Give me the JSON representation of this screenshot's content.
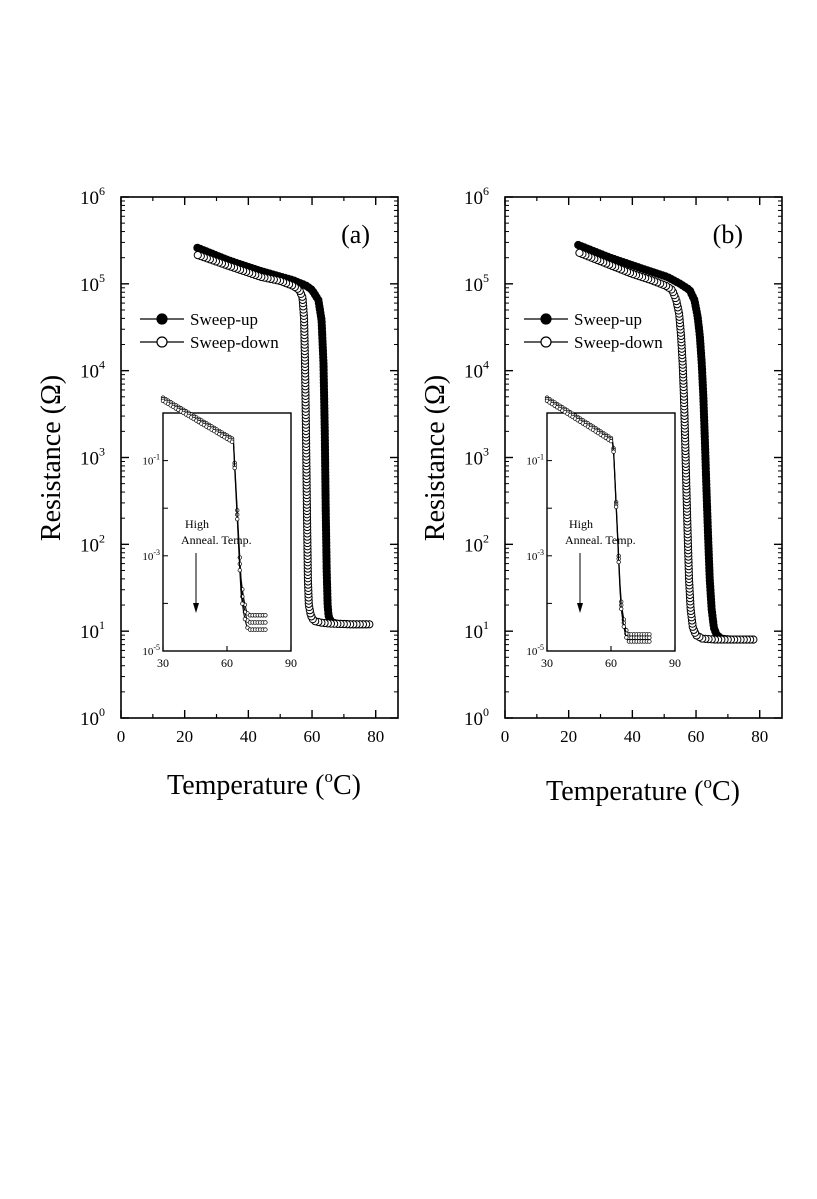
{
  "figure": {
    "panels": [
      "(a)",
      "(b)"
    ]
  },
  "chart_data": [
    {
      "type": "scatter",
      "panel_label": "(a)",
      "xlabel": "Temperature (oC)",
      "xlabel_main": "Temperature (",
      "xlabel_sup": "o",
      "xlabel_unit": "C)",
      "ylabel": "Resistance (Ω)",
      "ylabel_text": "Resistance (",
      "ylabel_symbol": "Ω",
      "ylabel_close": ")",
      "xlim": [
        0,
        87
      ],
      "ylim_log10": [
        0,
        6
      ],
      "x_ticks": [
        "0",
        "20",
        "40",
        "60",
        "80"
      ],
      "x_tick_values": [
        0,
        20,
        40,
        60,
        80
      ],
      "y_tick_base": "10",
      "y_tick_exponents": [
        "0",
        "1",
        "2",
        "3",
        "4",
        "5",
        "6"
      ],
      "y_tick_values": [
        0,
        1,
        2,
        3,
        4,
        5,
        6
      ],
      "legend_position": "upper-left",
      "series": [
        {
          "name": "Sweep-up",
          "marker": "filled-circle",
          "x": [
            24.0,
            34.0,
            44.0,
            54.0,
            58.0,
            60.0,
            62.0,
            63.0,
            63.6,
            64.0,
            64.3,
            64.6,
            64.9,
            65.2,
            65.5,
            65.9,
            66.5,
            68.0,
            72.0,
            78.0
          ],
          "y": [
            260000,
            185000,
            140000,
            110000,
            96000,
            85000,
            65000,
            38000,
            12000,
            2000,
            250,
            50,
            20,
            15,
            14,
            13,
            12.5,
            12.2,
            12.0,
            12.0
          ]
        },
        {
          "name": "Sweep-down",
          "marker": "open-circle",
          "x": [
            78.0,
            72.0,
            66.0,
            63.0,
            61.0,
            60.0,
            59.5,
            59.0,
            58.7,
            58.4,
            58.1,
            57.8,
            57.5,
            57.0,
            56.0,
            54.0,
            50.0,
            44.0,
            34.0,
            24.0
          ],
          "y": [
            12.0,
            12.0,
            12.2,
            12.5,
            13.0,
            14,
            16,
            20,
            40,
            250,
            2000,
            12000,
            40000,
            70000,
            85000,
            95000,
            108000,
            120000,
            160000,
            215000
          ]
        }
      ],
      "inset": {
        "xlim": [
          30,
          90
        ],
        "ylim_log10": [
          -5,
          0
        ],
        "x_ticks": [
          "30",
          "60",
          "90"
        ],
        "x_tick_values": [
          30,
          60,
          90
        ],
        "y_tick_base": "10",
        "y_tick_exponents": [
          "-1",
          "-3",
          "-5"
        ],
        "y_tick_values": [
          -1,
          -3,
          -5
        ],
        "annotation_line1": "High",
        "annotation_line2": "Anneal. Temp.",
        "transition_x": 65,
        "curves": [
          {
            "high": 0.28,
            "low_log10": -4.25
          },
          {
            "high": 0.26,
            "low_log10": -4.4
          },
          {
            "high": 0.24,
            "low_log10": -4.55
          }
        ]
      }
    },
    {
      "type": "scatter",
      "panel_label": "(b)",
      "xlabel": "Temperature (oC)",
      "xlabel_main": "Temperature (",
      "xlabel_sup": "o",
      "xlabel_unit": "C)",
      "ylabel": "Resistance (Ω)",
      "ylabel_text": "Resistance (",
      "ylabel_symbol": "Ω",
      "ylabel_close": ")",
      "xlim": [
        0,
        87
      ],
      "ylim_log10": [
        0,
        6
      ],
      "x_ticks": [
        "0",
        "20",
        "40",
        "60",
        "80"
      ],
      "x_tick_values": [
        0,
        20,
        40,
        60,
        80
      ],
      "y_tick_base": "10",
      "y_tick_exponents": [
        "0",
        "1",
        "2",
        "3",
        "4",
        "5",
        "6"
      ],
      "y_tick_values": [
        0,
        1,
        2,
        3,
        4,
        5,
        6
      ],
      "legend_position": "upper-left",
      "series": [
        {
          "name": "Sweep-up",
          "marker": "filled-circle",
          "x": [
            23.0,
            33.0,
            43.0,
            51.0,
            55.0,
            58.0,
            59.5,
            60.5,
            61.2,
            61.8,
            62.3,
            62.8,
            63.3,
            63.8,
            64.3,
            64.9,
            65.6,
            66.5,
            68.0,
            71.0,
            75.0,
            78.0
          ],
          "y": [
            280000,
            200000,
            150000,
            120000,
            100000,
            85000,
            65000,
            42000,
            25000,
            12000,
            5000,
            1500,
            400,
            120,
            40,
            18,
            11,
            9.0,
            8.2,
            8.0,
            8.0,
            8.0
          ],
          "transition_center": 63.3
        },
        {
          "name": "Sweep-down",
          "marker": "open-circle",
          "x": [
            78.0,
            72.0,
            66.0,
            62.0,
            60.0,
            59.0,
            58.3,
            57.8,
            57.4,
            57.0,
            56.6,
            56.2,
            55.8,
            55.3,
            54.7,
            53.8,
            52.5,
            50.5,
            46.0,
            40.0,
            32.0,
            23.0
          ],
          "y": [
            8.0,
            8.0,
            8.0,
            8.2,
            9.0,
            11,
            18,
            40,
            120,
            400,
            1500,
            5000,
            12000,
            25000,
            45000,
            65000,
            85000,
            95000,
            110000,
            130000,
            170000,
            230000
          ],
          "transition_center": 57.0
        }
      ],
      "inset": {
        "xlim": [
          30,
          90
        ],
        "ylim_log10": [
          -5,
          0
        ],
        "x_ticks": [
          "30",
          "60",
          "90"
        ],
        "x_tick_values": [
          30,
          60,
          90
        ],
        "y_tick_base": "10",
        "y_tick_exponents": [
          "-1",
          "-3",
          "-5"
        ],
        "y_tick_values": [
          -1,
          -3,
          -5
        ],
        "annotation_line1": "High",
        "annotation_line2": "Anneal. Temp.",
        "transition_x": 63,
        "curves": [
          {
            "high": 0.28,
            "low_log10": -4.65
          },
          {
            "high": 0.26,
            "low_log10": -4.72
          },
          {
            "high": 0.24,
            "low_log10": -4.8
          }
        ]
      }
    }
  ]
}
